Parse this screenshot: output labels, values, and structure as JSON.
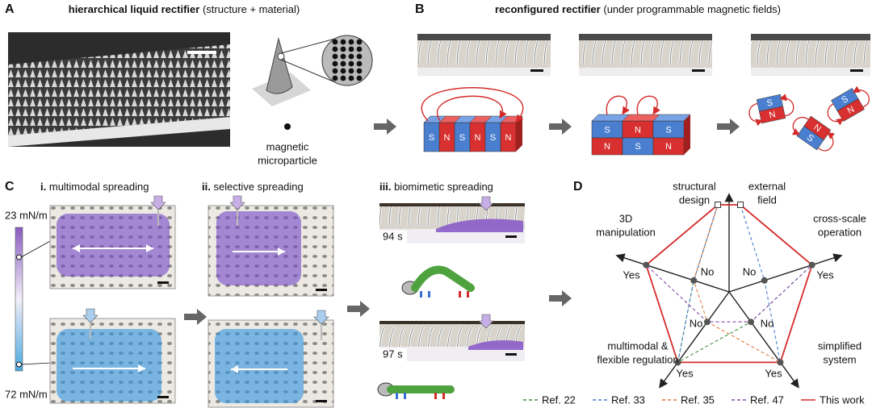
{
  "panels": {
    "A": {
      "letter": "A",
      "title": "hierarchical liquid rectifier",
      "subtitle": "(structure + material)",
      "particle_label": [
        "magnetic",
        "microparticle"
      ]
    },
    "B": {
      "letter": "B",
      "title": "reconfigured rectifier",
      "subtitle": "(under programmable magnetic fields)",
      "magnets_1": [
        "S",
        "N",
        "S",
        "N",
        "S",
        "N"
      ],
      "magnets_2_top": [
        "S",
        "N",
        "S"
      ],
      "magnets_2_bottom": [
        "N",
        "S",
        "N"
      ],
      "magnets_3": [
        [
          "S",
          "N"
        ],
        [
          "N",
          "S"
        ],
        [
          "S",
          "N"
        ]
      ]
    },
    "C": {
      "letter": "C",
      "sections": [
        {
          "numeral": "i.",
          "title": "multimodal spreading"
        },
        {
          "numeral": "ii.",
          "title": "selective spreading"
        },
        {
          "numeral": "iii.",
          "title": "biomimetic spreading"
        }
      ],
      "tension_high": "23 mN/m",
      "tension_low": "72 mN/m",
      "times": [
        "94 s",
        "97 s"
      ]
    },
    "D": {
      "letter": "D",
      "axis_labels": [
        [
          "structural",
          "design"
        ],
        [
          "external",
          "field"
        ],
        [
          "cross-scale",
          "operation"
        ],
        [
          "simplified",
          "system"
        ],
        [
          "multimodal &",
          "flexible regulation"
        ],
        [
          "3D",
          "manipulation"
        ]
      ],
      "yes_labels": [
        "Yes",
        "Yes",
        "Yes",
        "Yes"
      ],
      "no_labels": [
        "No",
        "No",
        "No",
        "No"
      ],
      "legend": [
        {
          "name": "Ref. 22",
          "color": "#3f8f3a",
          "dashed": true
        },
        {
          "name": "Ref. 33",
          "color": "#4a7fcf",
          "dashed": true
        },
        {
          "name": "Ref. 35",
          "color": "#e0783a",
          "dashed": true
        },
        {
          "name": "Ref. 47",
          "color": "#8a4ab3",
          "dashed": true
        },
        {
          "name": "This work",
          "color": "#d42b2b",
          "dashed": false
        }
      ]
    }
  }
}
